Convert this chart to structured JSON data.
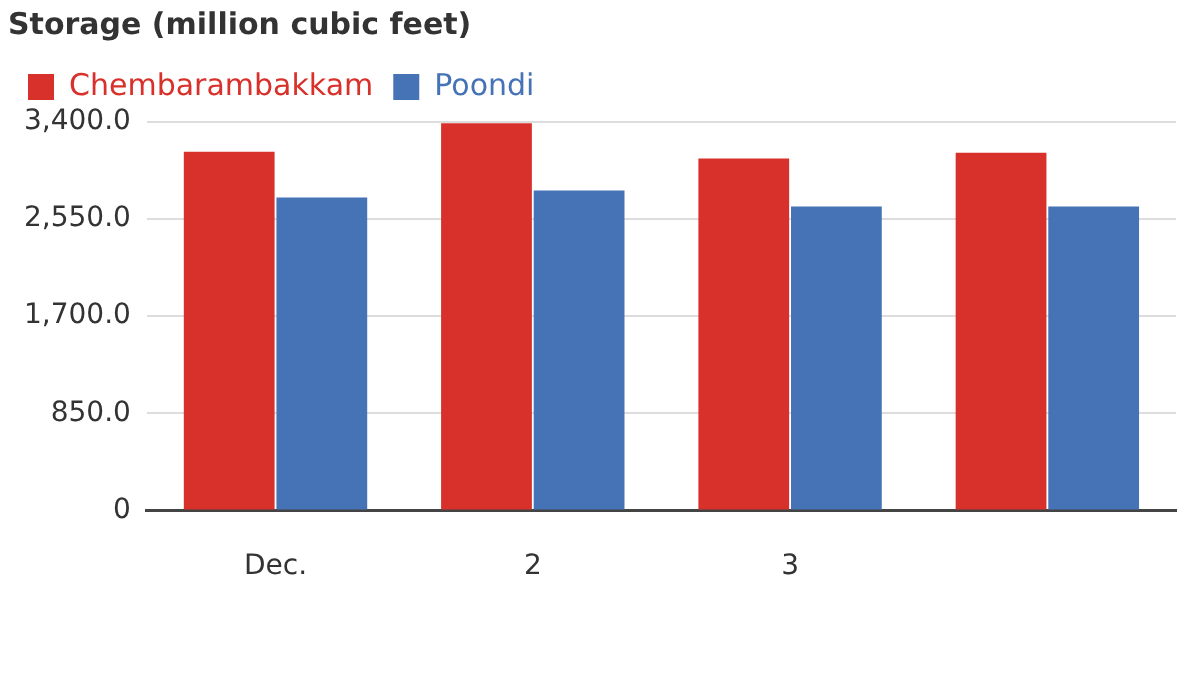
{
  "chart_data": {
    "type": "bar",
    "title": "Storage (million cubic feet)",
    "categories": [
      "Dec.",
      "2",
      "3",
      null
    ],
    "series": [
      {
        "name": "Chembarambakkam",
        "color": "#d8302a",
        "values": [
          3140,
          3390,
          3080,
          3130
        ]
      },
      {
        "name": "Poondi",
        "color": "#4673b5",
        "values": [
          2740,
          2800,
          2660,
          2660
        ]
      }
    ],
    "ylim": [
      0,
      3400
    ],
    "yticks": [
      {
        "value": 0,
        "label": "0"
      },
      {
        "value": 850,
        "label": "850.0"
      },
      {
        "value": 1700,
        "label": "1,700.0"
      },
      {
        "value": 2550,
        "label": "2,550.0"
      },
      {
        "value": 3400,
        "label": "3,400.0"
      }
    ],
    "grid": "y",
    "legend": "top left"
  }
}
